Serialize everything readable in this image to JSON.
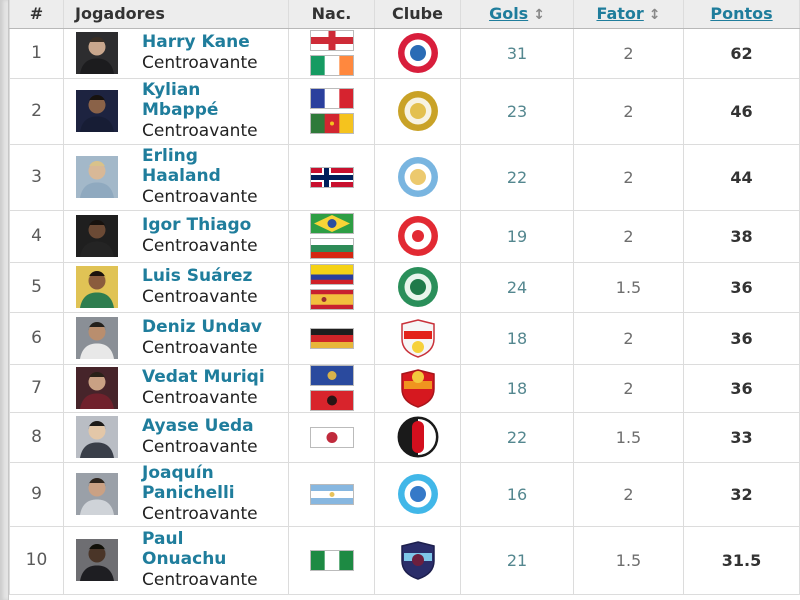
{
  "header": {
    "rank": "#",
    "players": "Jogadores",
    "nationality": "Nac.",
    "club": "Clube",
    "goals": "Gols",
    "factor": "Fator",
    "points": "Pontos",
    "sort_icon": "↕"
  },
  "colors": {
    "link": "#1f7d9c",
    "goals_text": "#54878f",
    "factor_text": "#6e6e6e",
    "points_text": "#333333",
    "header_bg": "#ededed"
  },
  "rows": [
    {
      "rank": "1",
      "name": "Harry Kane",
      "name_lines": [
        "Harry Kane"
      ],
      "position": "Centroavante",
      "goals": "31",
      "factor": "2",
      "points": "62",
      "nationalities": [
        "england",
        "ireland"
      ],
      "flags": [
        {
          "type": "cross",
          "bg": "#ffffff",
          "fg": "#ce2b37"
        },
        {
          "type": "v",
          "colors": [
            "#169b62",
            "#ffffff",
            "#ff883e"
          ]
        }
      ],
      "club": "bayern-munchen",
      "badge": {
        "shape": "circle",
        "layers": [
          "#d81e3c",
          "#ffffff",
          "#2a6bb5"
        ]
      },
      "photo": {
        "bg": "#2d2d2f",
        "skin": "#c9a78d",
        "shirt": "#1c1c1e",
        "hair": "#3a2f26"
      }
    },
    {
      "rank": "2",
      "name": "Kylian Mbappé",
      "name_lines": [
        "Kylian",
        "Mbappé"
      ],
      "position": "Centroavante",
      "goals": "23",
      "factor": "2",
      "points": "46",
      "nationalities": [
        "france",
        "cameroon"
      ],
      "flags": [
        {
          "type": "v",
          "colors": [
            "#2a3f9d",
            "#ffffff",
            "#d6232f"
          ]
        },
        {
          "type": "v",
          "colors": [
            "#2f7a3a",
            "#d22630",
            "#f5c31e"
          ],
          "dots": [
            {
              "c": "#f5c31e",
              "x": 22,
              "y": 10.5,
              "r": 2
            }
          ]
        }
      ],
      "club": "real-madrid",
      "badge": {
        "shape": "circle",
        "layers": [
          "#c9a227",
          "#f7f3e3",
          "#e3c04f"
        ]
      },
      "photo": {
        "bg": "#1d2340",
        "skin": "#8a6248",
        "shirt": "#171d35",
        "hair": "#17120e"
      }
    },
    {
      "rank": "3",
      "name": "Erling Haaland",
      "name_lines": [
        "Erling",
        "Haaland"
      ],
      "position": "Centroavante",
      "goals": "22",
      "factor": "2",
      "points": "44",
      "nationalities": [
        "norway"
      ],
      "flags": [
        {
          "type": "nordic",
          "bg": "#c8102e",
          "outline": "#ffffff",
          "cross": "#00205b"
        }
      ],
      "club": "manchester-city",
      "badge": {
        "shape": "circle",
        "layers": [
          "#79b5e0",
          "#ffffff",
          "#ecc96e"
        ]
      },
      "photo": {
        "bg": "#a3b8c9",
        "skin": "#d8b897",
        "shirt": "#8fa9bf",
        "hair": "#d9c28a"
      }
    },
    {
      "rank": "4",
      "name": "Igor Thiago",
      "name_lines": [
        "Igor Thiago"
      ],
      "position": "Centroavante",
      "goals": "19",
      "factor": "2",
      "points": "38",
      "nationalities": [
        "brazil",
        "bulgaria"
      ],
      "flags": [
        {
          "type": "brazil",
          "bg": "#2e9e44",
          "diamond": "#f8d436",
          "disc": "#2a4fa0"
        },
        {
          "type": "h",
          "colors": [
            "#ffffff",
            "#2e8b57",
            "#d62612"
          ]
        }
      ],
      "club": "brentford",
      "badge": {
        "shape": "circle",
        "layers": [
          "#e22a33",
          "#ffffff",
          "#e22a33"
        ],
        "innerR": 6
      },
      "photo": {
        "bg": "#1f1f1f",
        "skin": "#6b4a35",
        "shirt": "#242424",
        "hair": "#17120e"
      }
    },
    {
      "rank": "5",
      "name": "Luis Suárez",
      "name_lines": [
        "Luis Suárez"
      ],
      "position": "Centroavante",
      "goals": "24",
      "factor": "1.5",
      "points": "36",
      "nationalities": [
        "colombia",
        "spain"
      ],
      "flags": [
        {
          "type": "h",
          "colors": [
            "#f5d216",
            "#2a3f9d",
            "#cf2027"
          ],
          "sizes": [
            2,
            1,
            1
          ]
        },
        {
          "type": "h",
          "colors": [
            "#c8202f",
            "#f1bf3e",
            "#c8202f"
          ],
          "sizes": [
            1,
            2,
            1
          ],
          "dots": [
            {
              "c": "#9b2d30",
              "x": 14,
              "y": 10.5,
              "r": 2.5
            }
          ]
        }
      ],
      "club": "sporting",
      "badge": {
        "shape": "circle",
        "layers": [
          "#2a8f5a",
          "#e8f5ec",
          "#1f7a4a"
        ]
      },
      "photo": {
        "bg": "#e0c355",
        "skin": "#8a5c3d",
        "shirt": "#2e7d4f",
        "hair": "#1b130e"
      }
    },
    {
      "rank": "6",
      "name": "Deniz Undav",
      "name_lines": [
        "Deniz Undav"
      ],
      "position": "Centroavante",
      "goals": "18",
      "factor": "2",
      "points": "36",
      "nationalities": [
        "germany"
      ],
      "flags": [
        {
          "type": "h",
          "colors": [
            "#1e1e1e",
            "#d02428",
            "#e8b63a"
          ]
        }
      ],
      "club": "vfb-stuttgart",
      "badge": {
        "shape": "shield",
        "bg": "#f6f6f6",
        "stroke": "#c9323a",
        "band": "#e32219",
        "dot": "#f6d13a",
        "dotY": 30
      },
      "photo": {
        "bg": "#8a8f96",
        "skin": "#b98e6e",
        "shirt": "#e8e8e8",
        "hair": "#23201c"
      }
    },
    {
      "rank": "7",
      "name": "Vedat Muriqi",
      "name_lines": [
        "Vedat Muriqi"
      ],
      "position": "Centroavante",
      "goals": "18",
      "factor": "2",
      "points": "36",
      "nationalities": [
        "kosovo",
        "albania"
      ],
      "flags": [
        {
          "type": "h",
          "colors": [
            "#2a4a9e"
          ],
          "dots": [
            {
              "c": "#d8b24a",
              "x": 22,
              "y": 10.5,
              "r": 4.5
            }
          ]
        },
        {
          "type": "h",
          "colors": [
            "#d8242c"
          ],
          "dots": [
            {
              "c": "#2a1414",
              "x": 22,
              "y": 10.5,
              "r": 5
            }
          ]
        }
      ],
      "club": "mallorca",
      "badge": {
        "shape": "shield",
        "bg": "#d6181f",
        "stroke": "#a8151b",
        "band": "#f0941f",
        "dot": "#f3c83d",
        "dotY": 10
      },
      "photo": {
        "bg": "#46242a",
        "skin": "#c9a184",
        "shirt": "#70212c",
        "hair": "#2a2118"
      }
    },
    {
      "rank": "8",
      "name": "Ayase Ueda",
      "name_lines": [
        "Ayase Ueda"
      ],
      "position": "Centroavante",
      "goals": "22",
      "factor": "1.5",
      "points": "33",
      "nationalities": [
        "japan"
      ],
      "flags": [
        {
          "type": "disc",
          "bg": "#ffffff",
          "fg": "#c02a3c"
        }
      ],
      "club": "feyenoord",
      "badge": {
        "shape": "split",
        "left": "#1a1a1a",
        "right": "#ffffff",
        "bar": "#d30f1e"
      },
      "photo": {
        "bg": "#b9bdc4",
        "skin": "#e3c7a8",
        "shirt": "#3a3f49",
        "hair": "#1c1a18"
      }
    },
    {
      "rank": "9",
      "name": "Joaquín Panichelli",
      "name_lines": [
        "Joaquín",
        "Panichelli"
      ],
      "position": "Centroavante",
      "goals": "16",
      "factor": "2",
      "points": "32",
      "nationalities": [
        "argentina"
      ],
      "flags": [
        {
          "type": "h",
          "colors": [
            "#87b7e0",
            "#ffffff",
            "#87b7e0"
          ],
          "dots": [
            {
              "c": "#e8c25a",
              "x": 22,
              "y": 10.5,
              "r": 2.5
            }
          ]
        }
      ],
      "club": "strasbourg",
      "badge": {
        "shape": "circle",
        "layers": [
          "#41b7e8",
          "#ffffff",
          "#3579c8"
        ]
      },
      "photo": {
        "bg": "#9aa0a8",
        "skin": "#caa184",
        "shirt": "#cfd3d8",
        "hair": "#2e251d"
      }
    },
    {
      "rank": "10",
      "name": "Paul Onuachu",
      "name_lines": [
        "Paul",
        "Onuachu"
      ],
      "position": "Centroavante",
      "goals": "21",
      "factor": "1.5",
      "points": "31.5",
      "nationalities": [
        "nigeria"
      ],
      "flags": [
        {
          "type": "v",
          "colors": [
            "#1d8a43",
            "#ffffff",
            "#1d8a43"
          ]
        }
      ],
      "club": "trabzonspor",
      "badge": {
        "shape": "shield",
        "bg": "#2a2d69",
        "stroke": "#1d1f4d",
        "band": "#7ec6e8",
        "dot": "#6d1f3e",
        "dotY": 21
      },
      "photo": {
        "bg": "#6e6e72",
        "skin": "#4a3528",
        "shirt": "#1e1e22",
        "hair": "#111008"
      }
    }
  ]
}
